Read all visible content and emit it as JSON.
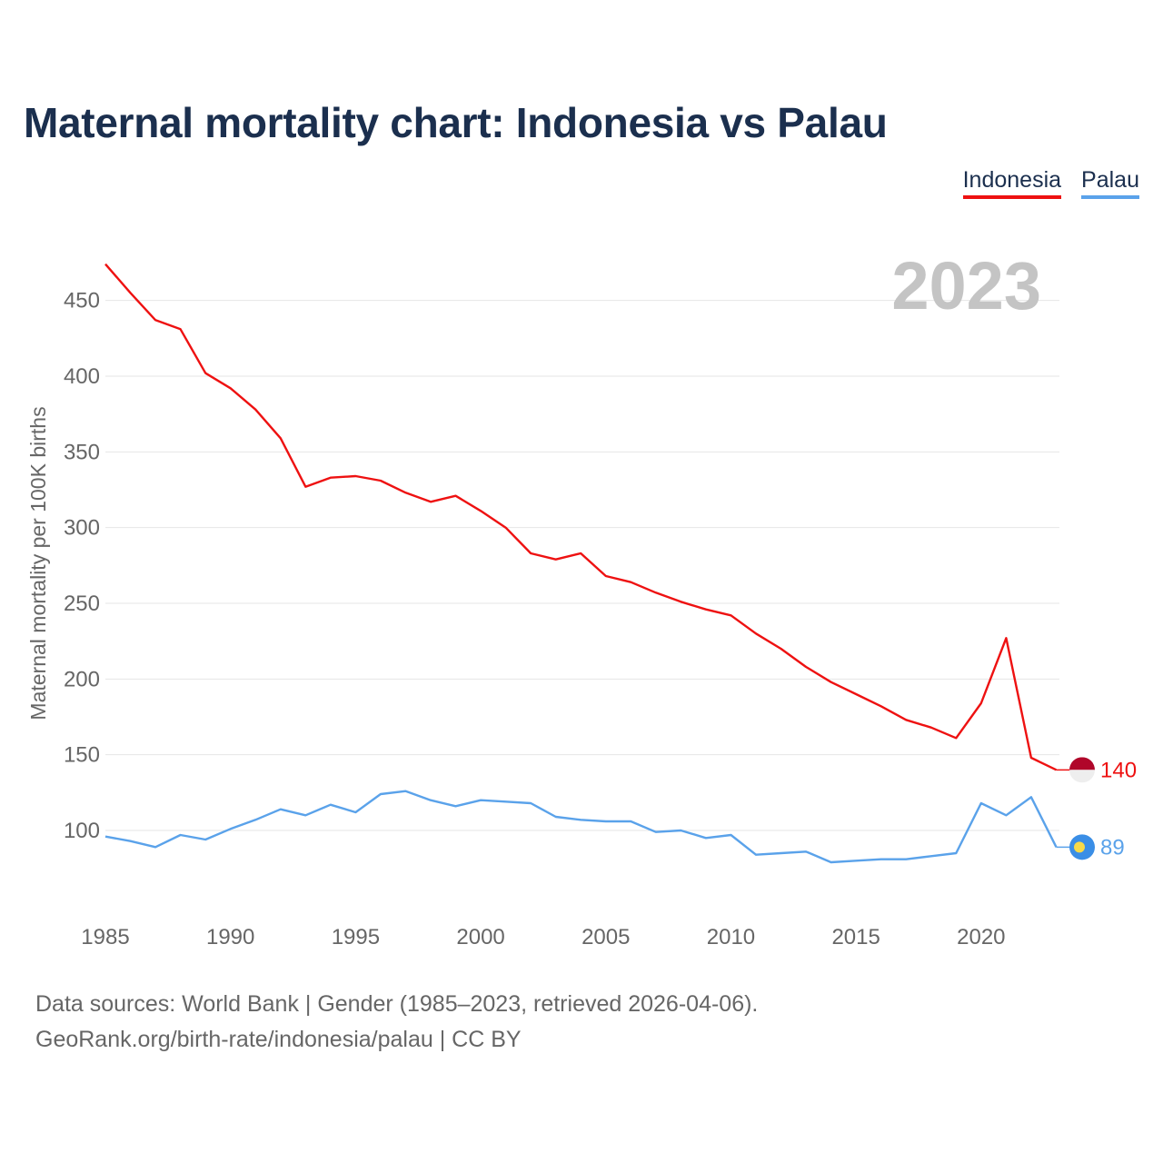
{
  "title": "Maternal mortality chart: Indonesia vs Palau",
  "legend": [
    {
      "name": "Indonesia",
      "color": "#ee1111"
    },
    {
      "name": "Palau",
      "color": "#5aa2ea"
    }
  ],
  "chart_data": {
    "type": "line",
    "title": "Maternal mortality chart: Indonesia vs Palau",
    "ylabel": "Maternal mortality per 100K births",
    "xlabel": "",
    "year_label": "2023",
    "xlim": [
      1985,
      2023
    ],
    "ylim": [
      40,
      490
    ],
    "xticks": [
      1985,
      1990,
      1995,
      2000,
      2005,
      2010,
      2015,
      2020
    ],
    "yticks": [
      100,
      150,
      200,
      250,
      300,
      350,
      400,
      450
    ],
    "grid": true,
    "x": [
      1985,
      1986,
      1987,
      1988,
      1989,
      1990,
      1991,
      1992,
      1993,
      1994,
      1995,
      1996,
      1997,
      1998,
      1999,
      2000,
      2001,
      2002,
      2003,
      2004,
      2005,
      2006,
      2007,
      2008,
      2009,
      2010,
      2011,
      2012,
      2013,
      2014,
      2015,
      2016,
      2017,
      2018,
      2019,
      2020,
      2021,
      2022,
      2023
    ],
    "series": [
      {
        "name": "Indonesia",
        "color": "#ee1111",
        "end_label": "140",
        "values": [
          474,
          455,
          437,
          431,
          402,
          392,
          378,
          359,
          327,
          333,
          334,
          331,
          323,
          317,
          321,
          311,
          300,
          283,
          279,
          283,
          268,
          264,
          257,
          251,
          246,
          242,
          230,
          220,
          208,
          198,
          190,
          182,
          173,
          168,
          161,
          184,
          227,
          148,
          140
        ]
      },
      {
        "name": "Palau",
        "color": "#5aa2ea",
        "end_label": "89",
        "values": [
          96,
          93,
          89,
          97,
          94,
          101,
          107,
          114,
          110,
          117,
          112,
          124,
          126,
          120,
          116,
          120,
          119,
          118,
          109,
          107,
          106,
          106,
          99,
          100,
          95,
          97,
          84,
          85,
          86,
          79,
          80,
          81,
          81,
          83,
          85,
          118,
          110,
          122,
          89
        ]
      }
    ]
  },
  "source": {
    "line1": "Data sources: World Bank | Gender (1985–2023, retrieved 2026-04-06).",
    "line2": "GeoRank.org/birth-rate/indonesia/palau | CC BY"
  },
  "flags": {
    "indonesia": {
      "top": "#b0062a",
      "bottom": "#eeeeee"
    },
    "palau": {
      "field": "#3a8ee6",
      "disc": "#f7d948"
    }
  }
}
